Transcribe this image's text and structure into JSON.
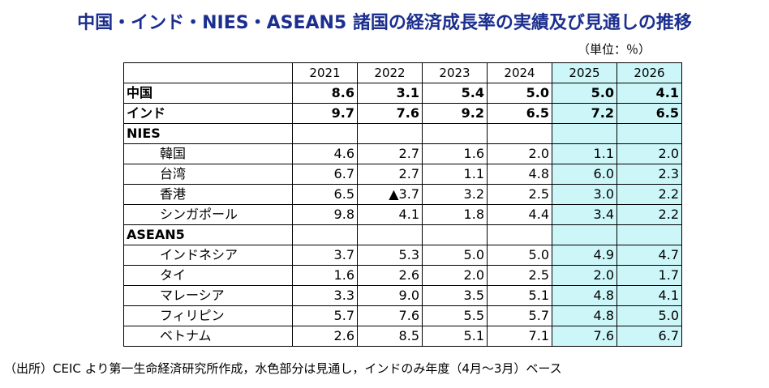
{
  "title": "中国・インド・NIES・ASEAN5 諸国の経済成長率の実績及び見通しの推移",
  "unit": "（単位：％）",
  "colors": {
    "projection_bg": "#ccf6f8",
    "title_color": "#1c2f8f"
  },
  "header": {
    "blank": "",
    "years": [
      "2021",
      "2022",
      "2023",
      "2024",
      "2025",
      "2026"
    ]
  },
  "rows": {
    "china": {
      "label": "中国",
      "values": [
        "8.6",
        "3.1",
        "5.4",
        "5.0",
        "5.0",
        "4.1"
      ]
    },
    "india": {
      "label": "インド",
      "values": [
        "9.7",
        "7.6",
        "9.2",
        "6.5",
        "7.2",
        "6.5"
      ]
    },
    "nies": {
      "label": "NIES"
    },
    "korea": {
      "label": "韓国",
      "values": [
        "4.6",
        "2.7",
        "1.6",
        "2.0",
        "1.1",
        "2.0"
      ]
    },
    "taiwan": {
      "label": "台湾",
      "values": [
        "6.7",
        "2.7",
        "1.1",
        "4.8",
        "6.0",
        "2.3"
      ]
    },
    "hongkong": {
      "label": "香港",
      "values": [
        "6.5",
        "▲3.7",
        "3.2",
        "2.5",
        "3.0",
        "2.2"
      ]
    },
    "singapore": {
      "label": "シンガポール",
      "values": [
        "9.8",
        "4.1",
        "1.8",
        "4.4",
        "3.4",
        "2.2"
      ]
    },
    "asean5": {
      "label": "ASEAN5"
    },
    "indonesia": {
      "label": "インドネシア",
      "values": [
        "3.7",
        "5.3",
        "5.0",
        "5.0",
        "4.9",
        "4.7"
      ]
    },
    "thailand": {
      "label": "タイ",
      "values": [
        "1.6",
        "2.6",
        "2.0",
        "2.5",
        "2.0",
        "1.7"
      ]
    },
    "malaysia": {
      "label": "マレーシア",
      "values": [
        "3.3",
        "9.0",
        "3.5",
        "5.1",
        "4.8",
        "4.1"
      ]
    },
    "philippines": {
      "label": "フィリピン",
      "values": [
        "5.7",
        "7.6",
        "5.5",
        "5.7",
        "4.8",
        "5.0"
      ]
    },
    "vietnam": {
      "label": "ベトナム",
      "values": [
        "2.6",
        "8.5",
        "5.1",
        "7.1",
        "7.6",
        "6.7"
      ]
    }
  },
  "footnote": "（出所）CEIC より第一生命経済研究所作成，水色部分は見通し，インドのみ年度（4月～3月）ベース"
}
